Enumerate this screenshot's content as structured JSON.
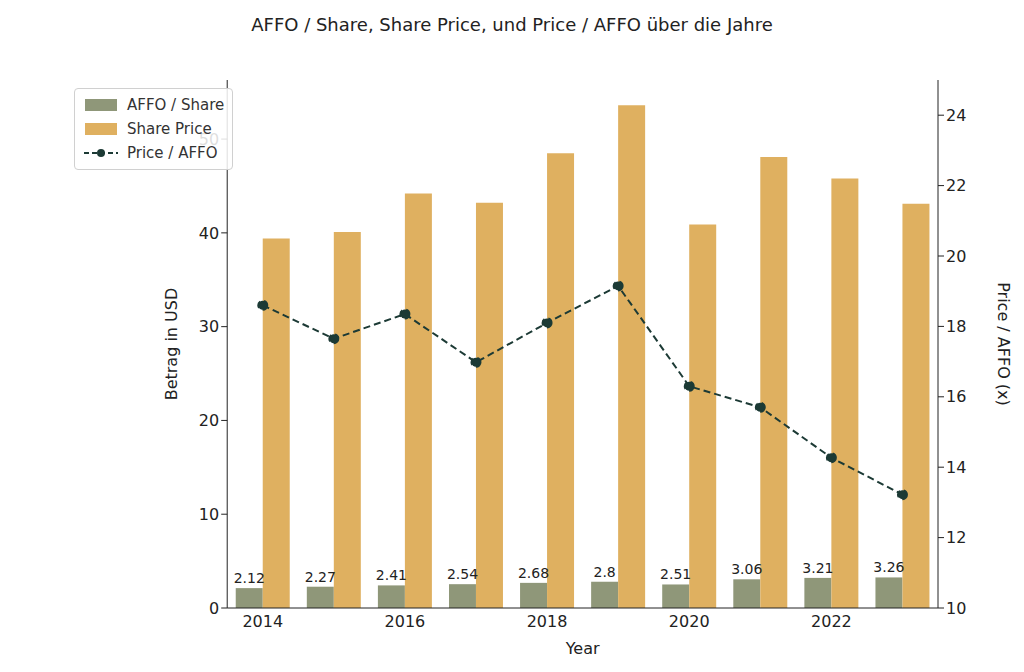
{
  "chart_data": {
    "type": "bar",
    "title": "AFFO / Share, Share Price, und Price / AFFO über die Jahre",
    "x_label": "Year",
    "y_label": "Betrag in USD",
    "y2_label": "Price / AFFO (x)",
    "categories": [
      2014,
      null,
      2016,
      null,
      2018,
      null,
      2020,
      null,
      2022,
      null
    ],
    "series": [
      {
        "name": "AFFO / Share",
        "color": "#8f9779",
        "values": [
          2.12,
          2.27,
          2.41,
          2.54,
          2.68,
          2.8,
          2.51,
          3.06,
          3.21,
          3.26
        ],
        "data_labels": true
      },
      {
        "name": "Share Price",
        "color": "#dfb060",
        "values": [
          39.4,
          40.1,
          44.2,
          43.2,
          48.5,
          53.6,
          40.9,
          48.1,
          45.8,
          43.1
        ]
      },
      {
        "name": "Price / AFFO",
        "type": "line",
        "axis": "y2",
        "color": "#1c3a35",
        "marker": "circle",
        "line_style": "dashed",
        "values": [
          18.6,
          17.65,
          18.35,
          16.98,
          18.1,
          19.15,
          16.3,
          15.7,
          14.27,
          13.22
        ]
      }
    ],
    "ylim": [
      0,
      56.3
    ],
    "yticks": [
      0,
      10,
      20,
      30,
      40,
      50
    ],
    "y2lim": [
      10,
      25
    ],
    "y2ticks": [
      10,
      12,
      14,
      16,
      18,
      20,
      22,
      24
    ],
    "grid": false,
    "legend": "upper left"
  }
}
